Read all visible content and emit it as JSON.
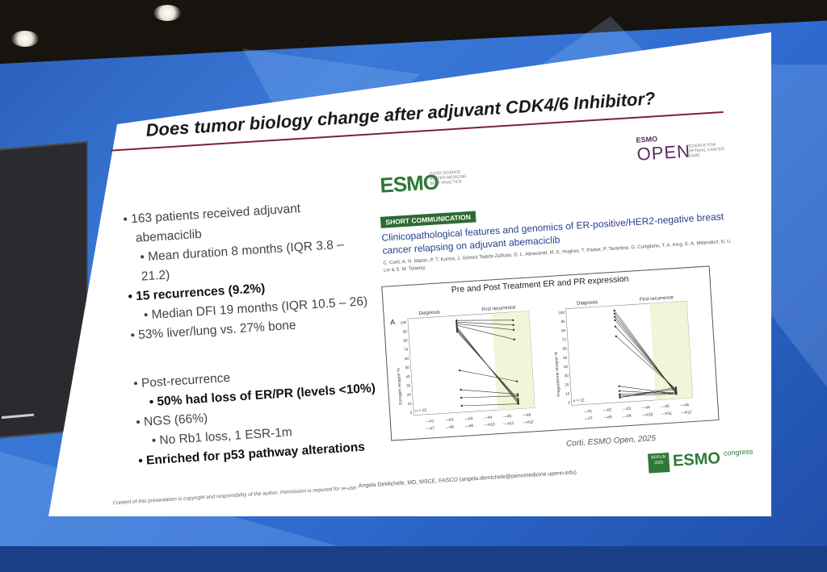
{
  "slide": {
    "title": "Does tumor biology change after adjuvant CDK4/6 Inhibitor?",
    "bullets": [
      {
        "text": "163 patients received adjuvant",
        "level": 1,
        "bold": false
      },
      {
        "text": "abemaciclib",
        "level": 1,
        "bold": false,
        "continuation": true
      },
      {
        "text": "Mean duration 8 months (IQR 3.8 –",
        "level": 2,
        "bold": false
      },
      {
        "text": "21.2)",
        "level": 2,
        "bold": false,
        "continuation": true
      },
      {
        "text": "15 recurrences (9.2%)",
        "level": 1,
        "bold": true
      },
      {
        "text": "Median DFI 19 months (IQR 10.5 – 26)",
        "level": 2,
        "bold": false
      },
      {
        "text": "53% liver/lung vs. 27% bone",
        "level": 1,
        "bold": false
      },
      {
        "text": "Post-recurrence",
        "level": 1,
        "bold": false
      },
      {
        "text": "50% had loss of ER/PR (levels <10%)",
        "level": 2,
        "bold": true
      },
      {
        "text": "NGS (66%)",
        "level": 1,
        "bold": false
      },
      {
        "text": "No Rb1 loss, 1 ESR-1m",
        "level": 2,
        "bold": false
      },
      {
        "text": "Enriched for p53 pathway alterations",
        "level": 1,
        "bold": true
      }
    ],
    "esmo_logo": {
      "mark": "ESMO",
      "tag": "GOOD SCIENCE BETTER MEDICINE BEST PRACTICE"
    },
    "journal_logo": {
      "small": "ESMO",
      "big": "OPEN",
      "tag": "SCIENCE FOR OPTIMAL CANCER CARE"
    },
    "short_communication": "SHORT COMMUNICATION",
    "paper_title": "Clinicopathological features and genomics of ER-positive/HER2-negative breast cancer relapsing on adjuvant abemaciclib",
    "authors": "C. Corti, A. R. Martin, P. T. Kurnia, J. Gómez Tejeda Zañudo, D. L. Abravanel, M. E. Hughes, T. Parker, P. Tarantino, G. Curigliano, T. A. King, E. A. Mittendorf, N. U. Lin & S. M. Tolaney",
    "figure": {
      "title": "Pre and Post Treatment ER and PR expression",
      "panel_label": "A",
      "col_labels": [
        "Diagnosis",
        "First recurrence"
      ],
      "y_left": "Estrogen receptor %",
      "y_right": "Progesterone receptor %",
      "n_label": "n = 12",
      "ticks": [
        "100",
        "90",
        "80",
        "70",
        "60",
        "50",
        "40",
        "30",
        "20",
        "10",
        "0"
      ],
      "legend_row1": [
        "#1",
        "#2",
        "#3",
        "#4",
        "#5",
        "#6"
      ],
      "legend_row2": [
        "#7",
        "#8",
        "#9",
        "#10",
        "#11",
        "#12"
      ]
    },
    "citation": "Corti, ESMO Open, 2025",
    "footer_note": "Content of this presentation is copyright and responsibility of the author. Permission is required for re-use.",
    "footer_author": "Angela DeMichele, MD, MSCE, FASCO (angela.demichele@pennmedicine.upenn.edu)",
    "congress": {
      "badge": "BERLIN 2025",
      "mark": "ESMO",
      "word": "congress"
    }
  }
}
